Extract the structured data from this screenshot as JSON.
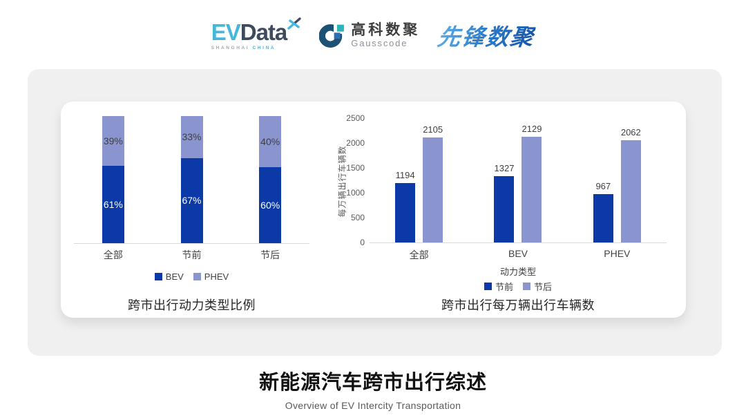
{
  "header": {
    "evdata": {
      "part1": "EV",
      "part2": "Data",
      "tagline_left": "SHANGHAI",
      "tagline_right": "CHINA",
      "accent_color": "#45b7dc",
      "text_color": "#3e4a5e"
    },
    "gausscode": {
      "name_cn": "高科数聚",
      "name_en": "Gausscode",
      "ring_color": "#1d5075",
      "teal_color": "#2ab5b8",
      "blue_color": "#2e6fb2"
    },
    "pioneer": {
      "name": "先锋数聚",
      "gradient_start": "#5fb0e8",
      "gradient_end": "#1155aa"
    }
  },
  "footer": {
    "title": "新能源汽车跨市出行综述",
    "subtitle": "Overview of EV Intercity Transportation"
  },
  "chart_data": [
    {
      "type": "bar",
      "subtype": "stacked-percent",
      "title": "跨市出行动力类型比例",
      "categories": [
        "全部",
        "节前",
        "节后"
      ],
      "series": [
        {
          "name": "BEV",
          "values": [
            61,
            67,
            60
          ],
          "color": "#0b39a7",
          "label_color": "#ffffff"
        },
        {
          "name": "PHEV",
          "values": [
            39,
            33,
            40
          ],
          "color": "#8a94cf",
          "label_color": "#3f3f3f"
        }
      ],
      "value_format": "percent",
      "ylim": [
        0,
        100
      ],
      "grid": false,
      "legend_position": "bottom"
    },
    {
      "type": "bar",
      "subtype": "grouped",
      "title": "跨市出行每万辆出行车辆数",
      "xlabel": "动力类型",
      "ylabel": "每万辆出行车辆数",
      "categories": [
        "全部",
        "BEV",
        "PHEV"
      ],
      "series": [
        {
          "name": "节前",
          "values": [
            1194,
            1327,
            967
          ],
          "color": "#0b39a7"
        },
        {
          "name": "节后",
          "values": [
            2105,
            2129,
            2062
          ],
          "color": "#8a94cf"
        }
      ],
      "ylim": [
        0,
        2500
      ],
      "yticks": [
        0,
        500,
        1000,
        1500,
        2000,
        2500
      ],
      "grid": false,
      "legend_position": "bottom"
    }
  ]
}
